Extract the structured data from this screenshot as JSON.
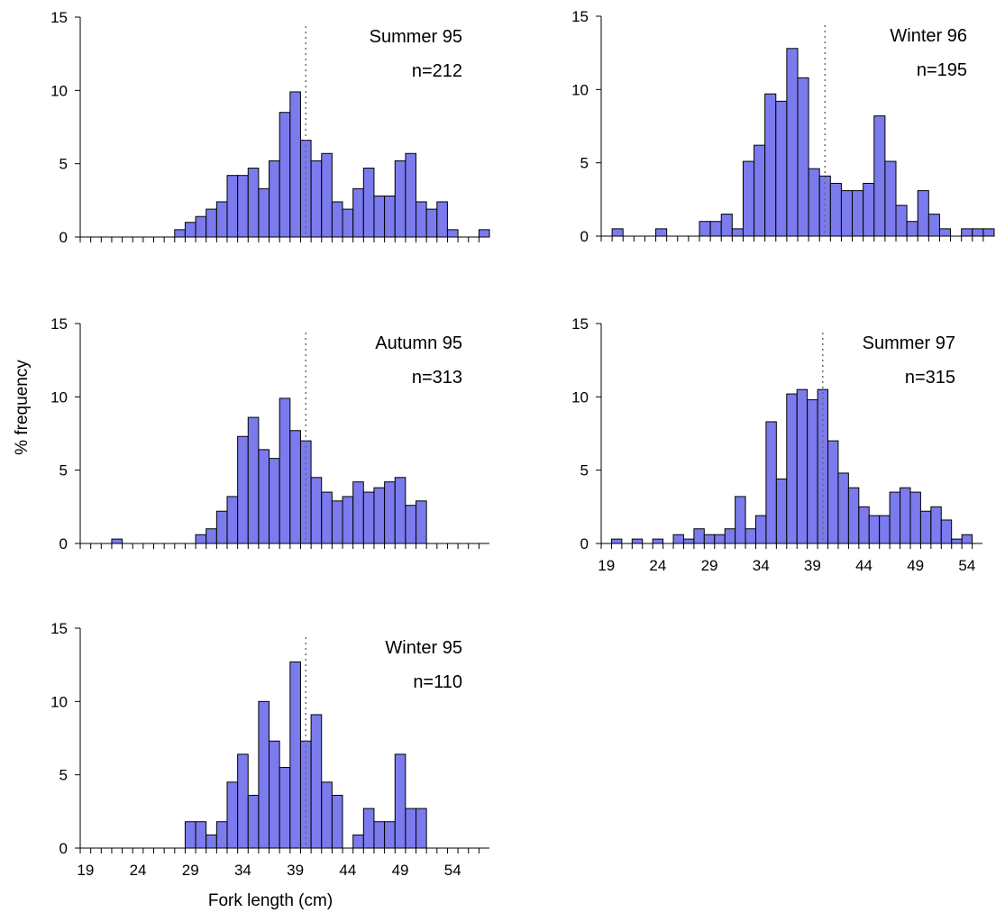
{
  "figure": {
    "ylabel": "% frequency",
    "xlabel": "Fork length (cm)",
    "bar_color": "#7b7bee",
    "bar_edge_color": "#000000",
    "reference_line_color": "#666666"
  },
  "chart_data": [
    {
      "type": "bar",
      "panel": "Summer 95",
      "title": "Summer 95",
      "n_label": "n=212",
      "ylim": [
        0,
        15
      ],
      "yticks": [
        0,
        5,
        10,
        15
      ],
      "xlim": [
        18.5,
        57.5
      ],
      "xtick_labels": [],
      "reference_line_x": 40,
      "x": [
        28,
        29,
        30,
        31,
        32,
        33,
        34,
        35,
        36,
        37,
        38,
        39,
        40,
        41,
        42,
        43,
        44,
        45,
        46,
        47,
        48,
        49,
        50,
        51,
        52,
        53,
        54,
        55,
        56,
        57
      ],
      "values": [
        0.5,
        1.0,
        1.4,
        1.9,
        2.4,
        4.2,
        4.2,
        4.7,
        3.3,
        5.2,
        8.5,
        9.9,
        6.6,
        5.2,
        5.7,
        2.4,
        1.9,
        3.3,
        4.7,
        2.8,
        2.8,
        5.2,
        5.7,
        2.4,
        1.9,
        2.4,
        0.5,
        0,
        0,
        0.5
      ]
    },
    {
      "type": "bar",
      "panel": "Winter 96",
      "title": "Winter 96",
      "n_label": "n=195",
      "ylim": [
        0,
        15
      ],
      "yticks": [
        0,
        5,
        10,
        15
      ],
      "xlim": [
        19.5,
        55.5
      ],
      "xtick_labels": [],
      "reference_line_x": 40,
      "x": [
        21,
        22,
        23,
        24,
        25,
        26,
        27,
        28,
        29,
        30,
        31,
        32,
        33,
        34,
        35,
        36,
        37,
        38,
        39,
        40,
        41,
        42,
        43,
        44,
        45,
        46,
        47,
        48,
        49,
        50,
        51,
        52,
        53,
        54,
        55
      ],
      "values": [
        0.5,
        0,
        0,
        0,
        0.5,
        0,
        0,
        0,
        1.0,
        1.0,
        1.5,
        0.5,
        5.1,
        6.2,
        9.7,
        9.2,
        12.8,
        10.8,
        4.6,
        4.1,
        3.6,
        3.1,
        3.1,
        3.6,
        8.2,
        5.1,
        2.1,
        1.0,
        3.1,
        1.5,
        0.5,
        0,
        0.5,
        0.5,
        0.5
      ]
    },
    {
      "type": "bar",
      "panel": "Autumn 95",
      "title": "Autumn 95",
      "n_label": "n=313",
      "ylim": [
        0,
        15
      ],
      "yticks": [
        0,
        5,
        10,
        15
      ],
      "xlim": [
        18.5,
        57.5
      ],
      "xtick_labels": [],
      "reference_line_x": 40,
      "x": [
        22,
        30,
        31,
        32,
        33,
        34,
        35,
        36,
        37,
        38,
        39,
        40,
        41,
        42,
        43,
        44,
        45,
        46,
        47,
        48,
        49,
        50,
        51
      ],
      "values": [
        0.3,
        0.6,
        1.0,
        2.2,
        3.2,
        7.3,
        8.6,
        6.4,
        5.8,
        9.9,
        7.7,
        7.0,
        4.5,
        3.5,
        2.9,
        3.2,
        4.2,
        3.5,
        3.8,
        4.2,
        4.5,
        2.6,
        2.9
      ]
    },
    {
      "type": "bar",
      "panel": "Summer 97",
      "title": "Summer 97",
      "n_label": "n=315",
      "ylim": [
        0,
        15
      ],
      "yticks": [
        0,
        5,
        10,
        15
      ],
      "xlim": [
        18.5,
        55.5
      ],
      "xtick_labels": [
        "19",
        "24",
        "29",
        "34",
        "39",
        "44",
        "49",
        "54"
      ],
      "reference_line_x": 40,
      "x": [
        20,
        21,
        22,
        23,
        24,
        25,
        26,
        27,
        28,
        29,
        30,
        31,
        32,
        33,
        34,
        35,
        36,
        37,
        38,
        39,
        40,
        41,
        42,
        43,
        44,
        45,
        46,
        47,
        48,
        49,
        50,
        51,
        52,
        53,
        54
      ],
      "values": [
        0.3,
        0,
        0.3,
        0,
        0.3,
        0,
        0.6,
        0.3,
        1.0,
        0.6,
        0.6,
        1.0,
        3.2,
        1.0,
        1.9,
        8.3,
        4.4,
        10.2,
        10.5,
        9.8,
        10.5,
        7.0,
        4.8,
        3.8,
        2.5,
        1.9,
        1.9,
        3.5,
        3.8,
        3.5,
        2.2,
        2.5,
        1.6,
        0.3,
        0.6
      ]
    },
    {
      "type": "bar",
      "panel": "Winter 95",
      "title": "Winter 95",
      "n_label": "n=110",
      "ylim": [
        0,
        15
      ],
      "yticks": [
        0,
        5,
        10,
        15
      ],
      "xlim": [
        18.5,
        57.5
      ],
      "xtick_labels": [
        "19",
        "24",
        "29",
        "34",
        "39",
        "44",
        "49",
        "54"
      ],
      "reference_line_x": 40,
      "x": [
        29,
        30,
        31,
        32,
        33,
        34,
        35,
        36,
        37,
        38,
        39,
        40,
        41,
        42,
        43,
        44,
        45,
        46,
        47,
        48,
        49,
        50,
        51
      ],
      "values": [
        1.8,
        1.8,
        0.9,
        1.8,
        4.5,
        6.4,
        3.6,
        10.0,
        7.3,
        5.5,
        12.7,
        7.3,
        9.1,
        4.5,
        3.6,
        0,
        0.9,
        2.7,
        1.8,
        1.8,
        6.4,
        2.7,
        2.7
      ]
    }
  ]
}
